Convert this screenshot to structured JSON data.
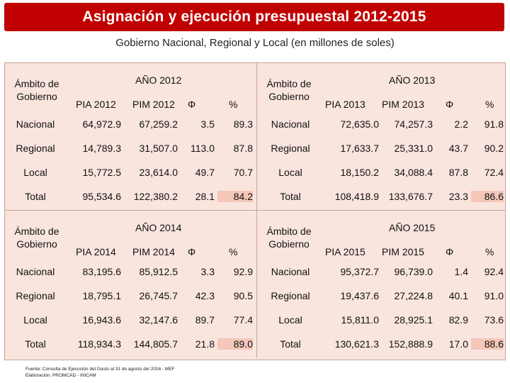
{
  "title": "Asignación y ejecución presupuestal 2012-2015",
  "subtitle": "Gobierno Nacional, Regional y Local (en millones de soles)",
  "header_ambito": "Ámbito de Gobierno",
  "years": [
    {
      "label": "AÑO 2012",
      "columns": [
        "PIA 2012",
        "PIM 2012",
        "Φ",
        "%"
      ],
      "rows": [
        {
          "ambito": "Nacional",
          "pia": "64,972.9",
          "pim": "67,259.2",
          "phi": "3.5",
          "pct": "89.3"
        },
        {
          "ambito": "Regional",
          "pia": "14,789.3",
          "pim": "31,507.0",
          "phi": "113.0",
          "pct": "87.8"
        },
        {
          "ambito": "Local",
          "pia": "15,772.5",
          "pim": "23,614.0",
          "phi": "49.7",
          "pct": "70.7"
        },
        {
          "ambito": "Total",
          "pia": "95,534.6",
          "pim": "122,380.2",
          "phi": "28.1",
          "pct": "84.2"
        }
      ]
    },
    {
      "label": "AÑO 2013",
      "columns": [
        "PIA 2013",
        "PIM 2013",
        "Φ",
        "%"
      ],
      "rows": [
        {
          "ambito": "Nacional",
          "pia": "72,635.0",
          "pim": "74,257.3",
          "phi": "2.2",
          "pct": "91.8"
        },
        {
          "ambito": "Regional",
          "pia": "17,633.7",
          "pim": "25,331.0",
          "phi": "43.7",
          "pct": "90.2"
        },
        {
          "ambito": "Local",
          "pia": "18,150.2",
          "pim": "34,088.4",
          "phi": "87.8",
          "pct": "72.4"
        },
        {
          "ambito": "Total",
          "pia": "108,418.9",
          "pim": "133,676.7",
          "phi": "23.3",
          "pct": "86.6"
        }
      ]
    },
    {
      "label": "AÑO 2014",
      "columns": [
        "PIA 2014",
        "PIM 2014",
        "Φ",
        "%"
      ],
      "rows": [
        {
          "ambito": "Nacional",
          "pia": "83,195.6",
          "pim": "85,912.5",
          "phi": "3.3",
          "pct": "92.9"
        },
        {
          "ambito": "Regional",
          "pia": "18,795.1",
          "pim": "26,745.7",
          "phi": "42.3",
          "pct": "90.5"
        },
        {
          "ambito": "Local",
          "pia": "16,943.6",
          "pim": "32,147.6",
          "phi": "89.7",
          "pct": "77.4"
        },
        {
          "ambito": "Total",
          "pia": "118,934.3",
          "pim": "144,805.7",
          "phi": "21.8",
          "pct": "89.0"
        }
      ]
    },
    {
      "label": "AÑO 2015",
      "columns": [
        "PIA 2015",
        "PIM 2015",
        "Φ",
        "%"
      ],
      "rows": [
        {
          "ambito": "Nacional",
          "pia": "95,372.7",
          "pim": "96,739.0",
          "phi": "1.4",
          "pct": "92.4"
        },
        {
          "ambito": "Regional",
          "pia": "19,437.6",
          "pim": "27,224.8",
          "phi": "40.1",
          "pct": "91.0"
        },
        {
          "ambito": "Local",
          "pia": "15,811.0",
          "pim": "28,925.1",
          "phi": "82.9",
          "pct": "73.6"
        },
        {
          "ambito": "Total",
          "pia": "130,621.3",
          "pim": "152,888.9",
          "phi": "17.0",
          "pct": "88.6"
        }
      ]
    }
  ],
  "source_line1": "Fuente: Consulta de Ejecución del Gasto al 31 de agosto del 2016 - MEF",
  "source_line2": "Elaboración: PROMCAD - INICAM"
}
